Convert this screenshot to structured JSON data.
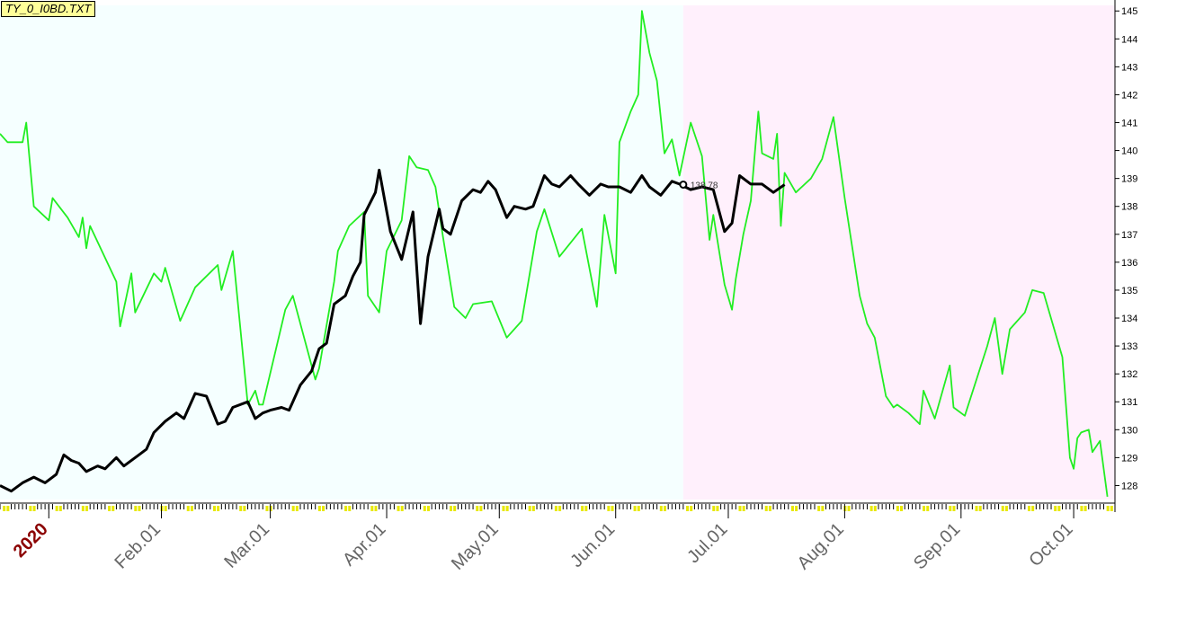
{
  "window": {
    "file_label": "TY_0_I0BD.TXT"
  },
  "colors": {
    "series_green": "#22ee22",
    "series_black": "#000000",
    "past_bg": "#f5ffff",
    "future_bg": "#fff0fc",
    "tick_yellow": "#e8e800"
  },
  "chart_data": {
    "type": "line",
    "x_axis": {
      "type": "date",
      "range": [
        "2019-12-20",
        "2020-10-12"
      ],
      "year_label": {
        "date": "2020-01-02",
        "text": "2020"
      },
      "tick_labels": [
        {
          "date": "2020-02-01",
          "text": "Feb.01"
        },
        {
          "date": "2020-03-01",
          "text": "Mar.01"
        },
        {
          "date": "2020-04-01",
          "text": "Apr.01"
        },
        {
          "date": "2020-05-01",
          "text": "May.01"
        },
        {
          "date": "2020-06-01",
          "text": "Jun.01"
        },
        {
          "date": "2020-07-01",
          "text": "Jul.01"
        },
        {
          "date": "2020-08-01",
          "text": "Aug.01"
        },
        {
          "date": "2020-09-01",
          "text": "Sep.01"
        },
        {
          "date": "2020-10-01",
          "text": "Oct.01"
        }
      ]
    },
    "y_axis": {
      "position": "right",
      "range": [
        127.5,
        145.2
      ],
      "ticks": [
        128,
        129,
        130,
        131,
        132,
        133,
        134,
        135,
        136,
        137,
        138,
        139,
        140,
        141,
        142,
        143,
        144,
        145
      ]
    },
    "background_split": {
      "date": "2020-06-19",
      "past": "light cyan",
      "future": "light pink"
    },
    "end_label": {
      "date": "2020-06-19",
      "value": 138.78,
      "text": "138.78"
    },
    "series": [
      {
        "color": "#22ee22",
        "points": [
          [
            "2019-12-20",
            140.6
          ],
          [
            "2019-12-22",
            140.3
          ],
          [
            "2019-12-26",
            140.3
          ],
          [
            "2019-12-27",
            141.0
          ],
          [
            "2019-12-29",
            138.0
          ],
          [
            "2020-01-02",
            137.5
          ],
          [
            "2020-01-03",
            138.3
          ],
          [
            "2020-01-07",
            137.6
          ],
          [
            "2020-01-10",
            136.9
          ],
          [
            "2020-01-11",
            137.6
          ],
          [
            "2020-01-12",
            136.5
          ],
          [
            "2020-01-13",
            137.3
          ],
          [
            "2020-01-20",
            135.3
          ],
          [
            "2020-01-21",
            133.7
          ],
          [
            "2020-01-24",
            135.6
          ],
          [
            "2020-01-25",
            134.2
          ],
          [
            "2020-01-30",
            135.6
          ],
          [
            "2020-02-01",
            135.3
          ],
          [
            "2020-02-02",
            135.8
          ],
          [
            "2020-02-06",
            133.9
          ],
          [
            "2020-02-10",
            135.1
          ],
          [
            "2020-02-16",
            135.9
          ],
          [
            "2020-02-17",
            135.0
          ],
          [
            "2020-02-20",
            136.4
          ],
          [
            "2020-02-24",
            130.9
          ],
          [
            "2020-02-26",
            131.4
          ],
          [
            "2020-02-27",
            130.9
          ],
          [
            "2020-02-28",
            130.9
          ],
          [
            "2020-03-05",
            134.3
          ],
          [
            "2020-03-07",
            134.8
          ],
          [
            "2020-03-13",
            131.8
          ],
          [
            "2020-03-14",
            132.2
          ],
          [
            "2020-03-18",
            135.3
          ],
          [
            "2020-03-19",
            136.4
          ],
          [
            "2020-03-22",
            137.3
          ],
          [
            "2020-03-26",
            137.8
          ],
          [
            "2020-03-27",
            134.8
          ],
          [
            "2020-03-30",
            134.2
          ],
          [
            "2020-04-01",
            136.4
          ],
          [
            "2020-04-05",
            137.5
          ],
          [
            "2020-04-07",
            139.8
          ],
          [
            "2020-04-09",
            139.4
          ],
          [
            "2020-04-12",
            139.3
          ],
          [
            "2020-04-14",
            138.7
          ],
          [
            "2020-04-16",
            136.9
          ],
          [
            "2020-04-19",
            134.4
          ],
          [
            "2020-04-22",
            134.0
          ],
          [
            "2020-04-24",
            134.5
          ],
          [
            "2020-04-29",
            134.6
          ],
          [
            "2020-05-03",
            133.3
          ],
          [
            "2020-05-07",
            133.9
          ],
          [
            "2020-05-11",
            137.1
          ],
          [
            "2020-05-13",
            137.9
          ],
          [
            "2020-05-17",
            136.2
          ],
          [
            "2020-05-23",
            137.2
          ],
          [
            "2020-05-27",
            134.4
          ],
          [
            "2020-05-29",
            137.7
          ],
          [
            "2020-06-01",
            135.6
          ],
          [
            "2020-06-02",
            140.3
          ],
          [
            "2020-06-05",
            141.4
          ],
          [
            "2020-06-07",
            142.0
          ],
          [
            "2020-06-08",
            145.0
          ],
          [
            "2020-06-10",
            143.5
          ],
          [
            "2020-06-12",
            142.5
          ],
          [
            "2020-06-14",
            139.9
          ],
          [
            "2020-06-16",
            140.4
          ],
          [
            "2020-06-18",
            139.1
          ],
          [
            "2020-06-21",
            141.0
          ],
          [
            "2020-06-24",
            139.8
          ],
          [
            "2020-06-26",
            136.8
          ],
          [
            "2020-06-27",
            137.7
          ],
          [
            "2020-06-30",
            135.2
          ],
          [
            "2020-07-02",
            134.3
          ],
          [
            "2020-07-03",
            135.4
          ],
          [
            "2020-07-05",
            137.0
          ],
          [
            "2020-07-07",
            138.2
          ],
          [
            "2020-07-09",
            141.4
          ],
          [
            "2020-07-10",
            139.9
          ],
          [
            "2020-07-13",
            139.7
          ],
          [
            "2020-07-14",
            140.6
          ],
          [
            "2020-07-15",
            137.3
          ],
          [
            "2020-07-16",
            139.2
          ],
          [
            "2020-07-19",
            138.5
          ],
          [
            "2020-07-23",
            139.0
          ],
          [
            "2020-07-26",
            139.7
          ],
          [
            "2020-07-29",
            141.2
          ],
          [
            "2020-08-01",
            138.3
          ],
          [
            "2020-08-05",
            134.8
          ],
          [
            "2020-08-07",
            133.8
          ],
          [
            "2020-08-09",
            133.3
          ],
          [
            "2020-08-12",
            131.2
          ],
          [
            "2020-08-14",
            130.8
          ],
          [
            "2020-08-15",
            130.9
          ],
          [
            "2020-08-18",
            130.6
          ],
          [
            "2020-08-21",
            130.2
          ],
          [
            "2020-08-22",
            131.4
          ],
          [
            "2020-08-25",
            130.4
          ],
          [
            "2020-08-29",
            132.3
          ],
          [
            "2020-08-30",
            130.8
          ],
          [
            "2020-09-02",
            130.5
          ],
          [
            "2020-09-08",
            133.0
          ],
          [
            "2020-09-10",
            134.0
          ],
          [
            "2020-09-12",
            132.0
          ],
          [
            "2020-09-14",
            133.6
          ],
          [
            "2020-09-18",
            134.2
          ],
          [
            "2020-09-20",
            135.0
          ],
          [
            "2020-09-23",
            134.9
          ],
          [
            "2020-09-28",
            132.6
          ],
          [
            "2020-09-30",
            129.0
          ],
          [
            "2020-10-01",
            128.6
          ],
          [
            "2020-10-02",
            129.7
          ],
          [
            "2020-10-03",
            129.9
          ],
          [
            "2020-10-05",
            130.0
          ],
          [
            "2020-10-06",
            129.2
          ],
          [
            "2020-10-08",
            129.6
          ],
          [
            "2020-10-10",
            127.6
          ]
        ]
      },
      {
        "color": "#000000",
        "points": [
          [
            "2019-12-20",
            128.0
          ],
          [
            "2019-12-23",
            127.8
          ],
          [
            "2019-12-26",
            128.1
          ],
          [
            "2019-12-29",
            128.3
          ],
          [
            "2020-01-01",
            128.1
          ],
          [
            "2020-01-04",
            128.4
          ],
          [
            "2020-01-06",
            129.1
          ],
          [
            "2020-01-08",
            128.9
          ],
          [
            "2020-01-10",
            128.8
          ],
          [
            "2020-01-12",
            128.5
          ],
          [
            "2020-01-15",
            128.7
          ],
          [
            "2020-01-17",
            128.6
          ],
          [
            "2020-01-20",
            129.0
          ],
          [
            "2020-01-22",
            128.7
          ],
          [
            "2020-01-26",
            129.1
          ],
          [
            "2020-01-28",
            129.3
          ],
          [
            "2020-01-30",
            129.9
          ],
          [
            "2020-02-02",
            130.3
          ],
          [
            "2020-02-05",
            130.6
          ],
          [
            "2020-02-07",
            130.4
          ],
          [
            "2020-02-10",
            131.3
          ],
          [
            "2020-02-13",
            131.2
          ],
          [
            "2020-02-16",
            130.2
          ],
          [
            "2020-02-18",
            130.3
          ],
          [
            "2020-02-20",
            130.8
          ],
          [
            "2020-02-24",
            131.0
          ],
          [
            "2020-02-26",
            130.4
          ],
          [
            "2020-02-28",
            130.6
          ],
          [
            "2020-03-01",
            130.7
          ],
          [
            "2020-03-04",
            130.8
          ],
          [
            "2020-03-06",
            130.7
          ],
          [
            "2020-03-09",
            131.6
          ],
          [
            "2020-03-12",
            132.1
          ],
          [
            "2020-03-14",
            132.9
          ],
          [
            "2020-03-16",
            133.1
          ],
          [
            "2020-03-18",
            134.5
          ],
          [
            "2020-03-21",
            134.8
          ],
          [
            "2020-03-23",
            135.5
          ],
          [
            "2020-03-25",
            136.0
          ],
          [
            "2020-03-26",
            137.7
          ],
          [
            "2020-03-29",
            138.5
          ],
          [
            "2020-03-30",
            139.3
          ],
          [
            "2020-04-02",
            137.1
          ],
          [
            "2020-04-05",
            136.1
          ],
          [
            "2020-04-08",
            137.8
          ],
          [
            "2020-04-10",
            133.8
          ],
          [
            "2020-04-12",
            136.2
          ],
          [
            "2020-04-15",
            137.9
          ],
          [
            "2020-04-16",
            137.2
          ],
          [
            "2020-04-18",
            137.0
          ],
          [
            "2020-04-21",
            138.2
          ],
          [
            "2020-04-24",
            138.6
          ],
          [
            "2020-04-26",
            138.5
          ],
          [
            "2020-04-28",
            138.9
          ],
          [
            "2020-04-30",
            138.6
          ],
          [
            "2020-05-03",
            137.6
          ],
          [
            "2020-05-05",
            138.0
          ],
          [
            "2020-05-08",
            137.9
          ],
          [
            "2020-05-10",
            138.0
          ],
          [
            "2020-05-13",
            139.1
          ],
          [
            "2020-05-15",
            138.8
          ],
          [
            "2020-05-17",
            138.7
          ],
          [
            "2020-05-20",
            139.1
          ],
          [
            "2020-05-22",
            138.8
          ],
          [
            "2020-05-25",
            138.4
          ],
          [
            "2020-05-28",
            138.8
          ],
          [
            "2020-05-30",
            138.7
          ],
          [
            "2020-06-02",
            138.7
          ],
          [
            "2020-06-05",
            138.5
          ],
          [
            "2020-06-08",
            139.1
          ],
          [
            "2020-06-10",
            138.7
          ],
          [
            "2020-06-13",
            138.4
          ],
          [
            "2020-06-16",
            138.9
          ],
          [
            "2020-06-18",
            138.8
          ],
          [
            "2020-06-21",
            138.6
          ],
          [
            "2020-06-24",
            138.7
          ],
          [
            "2020-06-27",
            138.6
          ],
          [
            "2020-06-30",
            137.1
          ],
          [
            "2020-07-02",
            137.4
          ],
          [
            "2020-07-04",
            139.1
          ],
          [
            "2020-07-07",
            138.8
          ],
          [
            "2020-07-10",
            138.8
          ],
          [
            "2020-07-13",
            138.5
          ],
          [
            "2020-07-16",
            138.78
          ]
        ]
      }
    ]
  }
}
